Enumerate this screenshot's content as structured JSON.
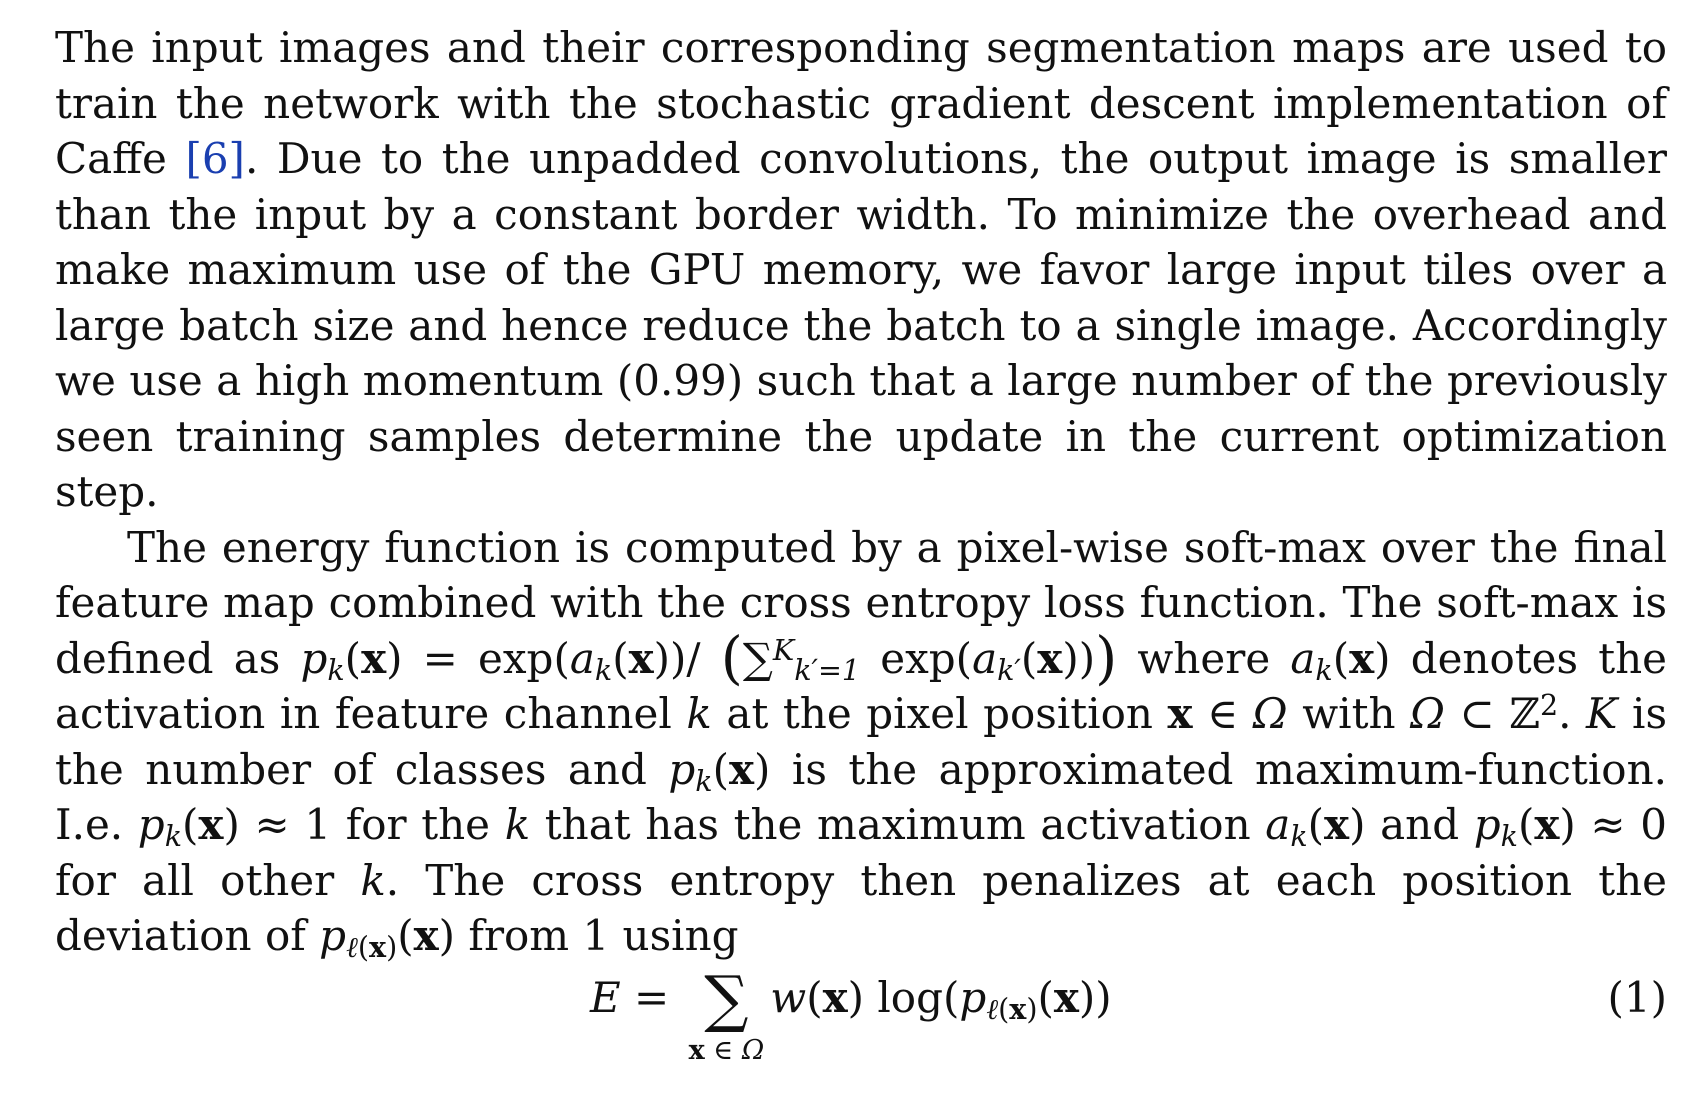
{
  "paragraph1": {
    "part1": "The input images and their corresponding segmentation maps are used to train the network with the stochastic gradient descent implementation of Caffe ",
    "citation": "[6]",
    "part2": ". Due to the unpadded convolutions, the output image is smaller than the input by a constant border width. To minimize the overhead and make maximum use of the GPU memory, we favor large input tiles over a large batch size and hence reduce the batch to a single image. Accordingly we use a high momentum (0.99) such that a large number of the previously seen training samples determine the update in the current optimization step."
  },
  "paragraph2": {
    "t1": "The energy function is computed by a pixel-wise soft-max over the final feature map combined with the cross entropy loss function. The soft-max is defined as ",
    "t2": " where ",
    "t3": " denotes the activation in feature channel ",
    "t4": " at the pixel position ",
    "t5": " with ",
    "t6": ". ",
    "t7": " is the number of classes and ",
    "t8": " is the approximated maximum-function. I.e. ",
    "t9": " for the ",
    "t10": " that has the maximum activation ",
    "t11": " and ",
    "t12": " for all other ",
    "t13": ". The cross entropy then penalizes at each position the deviation of ",
    "t14": " from 1 using"
  },
  "math": {
    "p": "p",
    "k": "k",
    "x": "x",
    "a": "a",
    "K": "K",
    "kprime": "k′",
    "kprime_eq_1": "k′=1",
    "exp": "exp",
    "Omega": "Ω",
    "Z": "ℤ",
    "two": "2",
    "approx_1": " ≈ 1",
    "approx_0": " ≈ 0",
    "in_sym": " ∈ ",
    "subset_sym": " ⊂ ",
    "eq_sym": " = ",
    "sum_sym": "∑",
    "slash": "/",
    "lparen": "(",
    "rparen": ")",
    "big_lparen": "(",
    "big_rparen": ")",
    "ell": "ℓ"
  },
  "equation": {
    "lhs": "E",
    "equals": " = ",
    "sum_symbol": "∑",
    "sum_under": "x∈Ω",
    "w": "w",
    "log": "log",
    "number": "(1)"
  }
}
